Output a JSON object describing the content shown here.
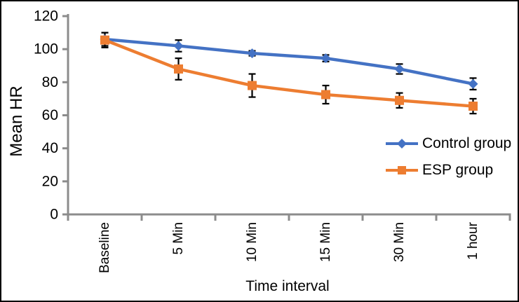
{
  "figure": {
    "background": "#ffffff",
    "border_color": "#000000"
  },
  "chart_data": {
    "type": "line",
    "title": "",
    "xlabel": "Time interval",
    "ylabel": "Mean HR",
    "categories": [
      "Baseline",
      "5 Min",
      "10 Min",
      "15 Min",
      "30 Min",
      "1 hour"
    ],
    "yticks": [
      0,
      20,
      40,
      60,
      80,
      100,
      120
    ],
    "ylim": [
      0,
      120
    ],
    "grid": false,
    "legend_position": "middle-right",
    "axis_color": "#8c8c8c",
    "error_bar_color": "#000000",
    "series": [
      {
        "name": "Control group",
        "color": "#4472c4",
        "marker": "diamond",
        "values": [
          106,
          102,
          97.5,
          94.5,
          88,
          79
        ],
        "errors": [
          4,
          3.5,
          1.5,
          2,
          3,
          3.5
        ]
      },
      {
        "name": "ESP group",
        "color": "#ed7d31",
        "marker": "square",
        "values": [
          105.5,
          88,
          78,
          72.5,
          69,
          65.5
        ],
        "errors": [
          4.5,
          6.5,
          7,
          5.5,
          4.5,
          4.5
        ]
      }
    ]
  }
}
